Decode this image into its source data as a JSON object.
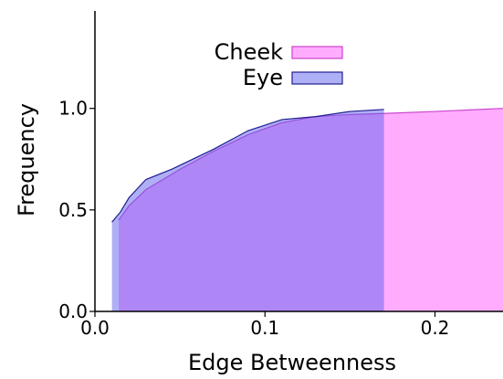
{
  "chart_data": {
    "type": "area",
    "title": "",
    "xlabel": "Edge Betweenness",
    "ylabel": "Frequency",
    "xlim": [
      0.0,
      0.24
    ],
    "ylim": [
      0.0,
      1.48
    ],
    "xticks": [
      0.0,
      0.1,
      0.2
    ],
    "xtick_labels": [
      "0.0",
      "0.1",
      "0.2"
    ],
    "yticks": [
      0.0,
      0.5,
      1.0
    ],
    "ytick_labels": [
      "0.0",
      "0.5",
      "1.0"
    ],
    "grid": false,
    "legend_position": "upper-center",
    "series": [
      {
        "name": "Cheek",
        "color": "#ff80ff",
        "edge_color": "#cc44cc",
        "opacity": 0.65,
        "x": [
          0.014,
          0.02,
          0.03,
          0.05,
          0.07,
          0.09,
          0.11,
          0.13,
          0.15,
          0.17,
          0.2,
          0.24
        ],
        "y": [
          0.45,
          0.52,
          0.6,
          0.7,
          0.79,
          0.87,
          0.93,
          0.96,
          0.97,
          0.975,
          0.985,
          1.0
        ]
      },
      {
        "name": "Eye",
        "color": "#6060ee",
        "edge_color": "#202090",
        "opacity": 0.5,
        "x": [
          0.01,
          0.015,
          0.02,
          0.03,
          0.045,
          0.07,
          0.09,
          0.11,
          0.13,
          0.15,
          0.17
        ],
        "y": [
          0.44,
          0.49,
          0.56,
          0.65,
          0.7,
          0.8,
          0.89,
          0.945,
          0.96,
          0.985,
          0.995
        ]
      }
    ]
  }
}
